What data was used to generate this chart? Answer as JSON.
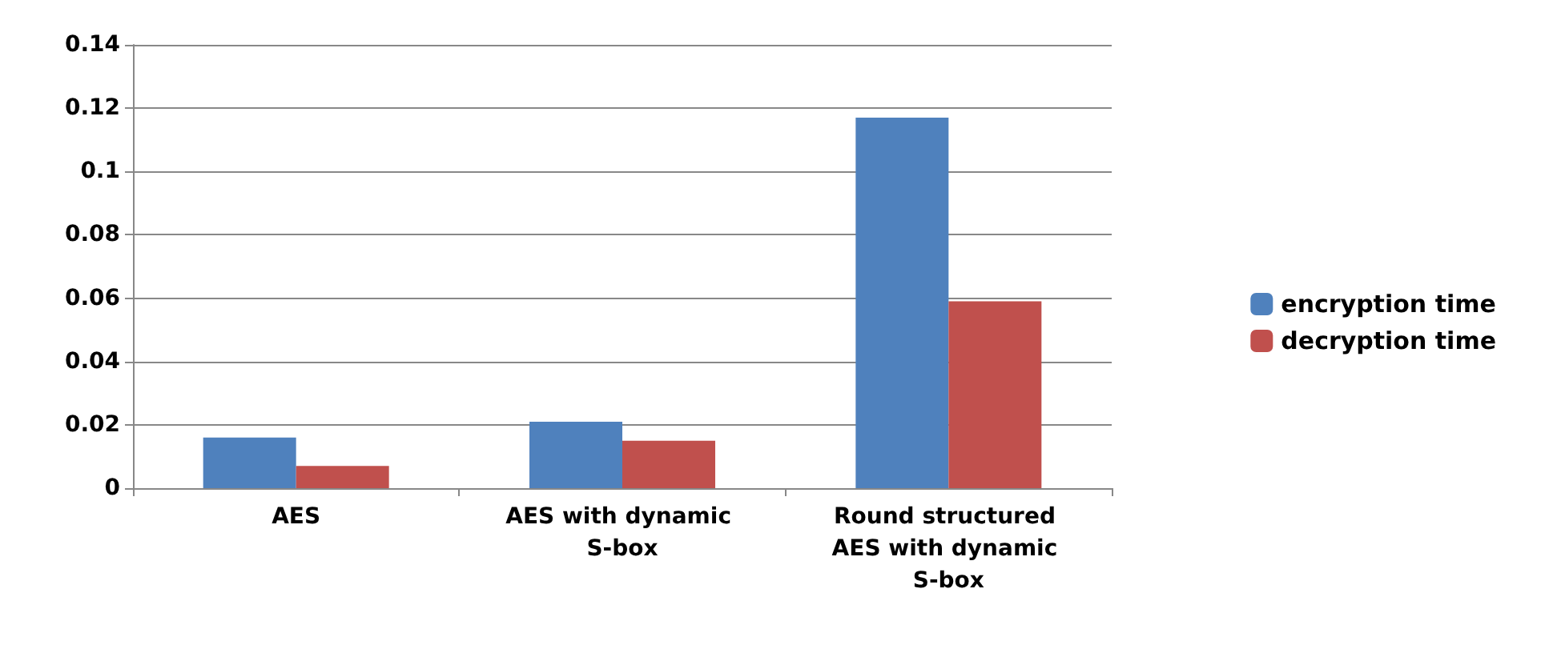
{
  "chart_data": {
    "type": "bar",
    "categories": [
      "AES",
      "AES with dynamic S-box",
      "Round structured AES with dynamic S-box"
    ],
    "series": [
      {
        "name": "encryption time",
        "color": "#4f81bd",
        "values": [
          0.016,
          0.021,
          0.117
        ]
      },
      {
        "name": "decryption time",
        "color": "#c0504d",
        "values": [
          0.007,
          0.015,
          0.059
        ]
      }
    ],
    "ylim": [
      0,
      0.14
    ],
    "yticks": [
      0,
      0.02,
      0.04,
      0.06,
      0.08,
      0.1,
      0.12,
      0.14
    ],
    "grid": "y",
    "legend": "right"
  }
}
